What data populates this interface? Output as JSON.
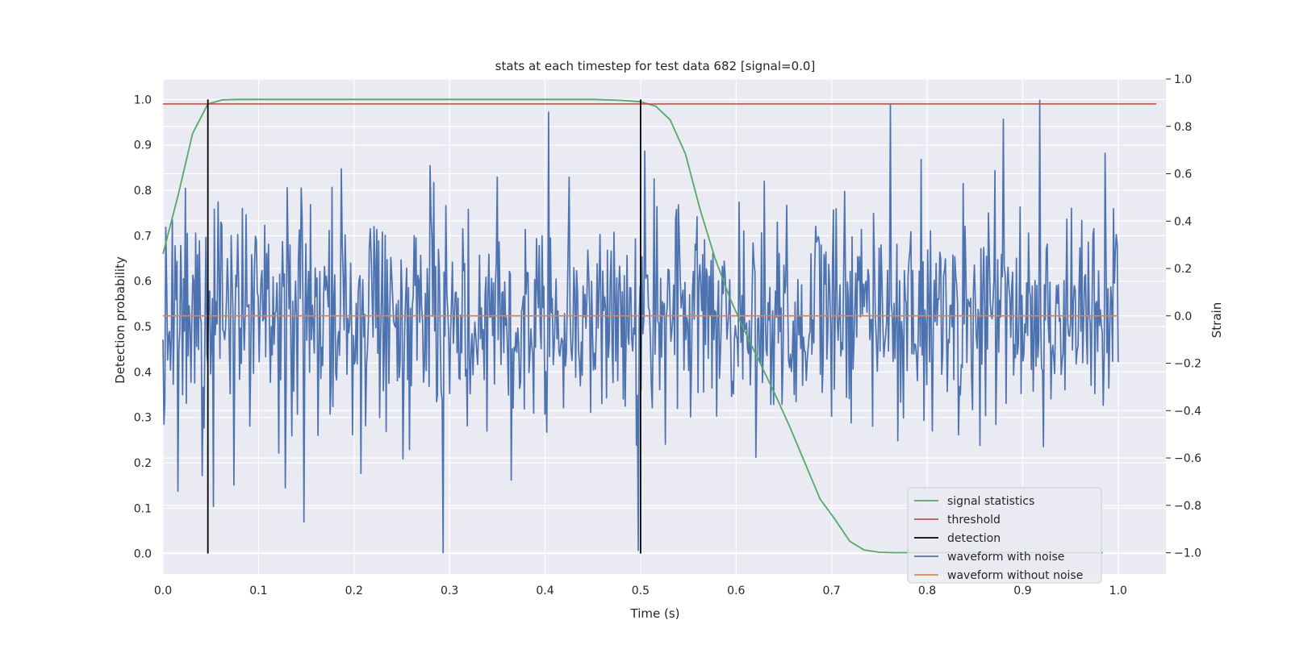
{
  "colors": {
    "background": "#eaeaf2",
    "grid": "#ffffff",
    "signal_statistics": "#55a868",
    "threshold": "#c44e52",
    "detection": "#000000",
    "waveform_with_noise": "#4c72b0",
    "waveform_without_noise": "#dd8452"
  },
  "chart_data": {
    "type": "line",
    "title": "stats at each timestep for test data 682 [signal=0.0]",
    "xlabel": "Time (s)",
    "ylabel": "Detection probability",
    "y2label": "Strain",
    "xlim": [
      0.0,
      1.05
    ],
    "ylim": [
      -0.045,
      1.045
    ],
    "y2lim": [
      -1.09,
      1.0
    ],
    "xticks": [
      "0.0",
      "0.1",
      "0.2",
      "0.3",
      "0.4",
      "0.5",
      "0.6",
      "0.7",
      "0.8",
      "0.9",
      "1.0"
    ],
    "yticks": [
      "0.0",
      "0.1",
      "0.2",
      "0.3",
      "0.4",
      "0.5",
      "0.6",
      "0.7",
      "0.8",
      "0.9",
      "1.0"
    ],
    "y2ticks": [
      "−1.0",
      "−0.8",
      "−0.6",
      "−0.4",
      "−0.2",
      "0.0",
      "0.2",
      "0.4",
      "0.6",
      "0.8",
      "1.0"
    ],
    "grid": true,
    "legend_position": "lower right",
    "series": [
      {
        "name": "signal statistics",
        "axis": "left",
        "x": [
          0.0,
          0.016,
          0.031,
          0.047,
          0.062,
          0.078,
          0.1,
          0.2,
          0.3,
          0.4,
          0.45,
          0.48,
          0.5,
          0.516,
          0.531,
          0.547,
          0.562,
          0.578,
          0.594,
          0.609,
          0.625,
          0.641,
          0.656,
          0.672,
          0.688,
          0.703,
          0.719,
          0.734,
          0.75,
          0.766,
          0.8,
          0.9,
          0.984
        ],
        "values": [
          0.66,
          0.79,
          0.925,
          0.99,
          0.999,
          1.0,
          1.0,
          1.0,
          1.0,
          1.0,
          1.0,
          0.998,
          0.995,
          0.985,
          0.955,
          0.88,
          0.76,
          0.65,
          0.56,
          0.49,
          0.42,
          0.35,
          0.28,
          0.2,
          0.12,
          0.077,
          0.027,
          0.008,
          0.003,
          0.002,
          0.002,
          0.002,
          0.002
        ]
      },
      {
        "name": "threshold",
        "axis": "left",
        "x": [
          0.0,
          1.04
        ],
        "values": [
          0.99,
          0.99
        ]
      },
      {
        "name": "detection",
        "axis": "left",
        "type": "vlines",
        "x": [
          0.047,
          0.5
        ],
        "ymin": 0.0,
        "ymax": 1.0
      },
      {
        "name": "waveform with noise",
        "axis": "right",
        "x_range": [
          0.0,
          1.0
        ],
        "samples": 1024,
        "sigma": 0.24,
        "extremes": [
          {
            "x": 0.293,
            "value": -1.0
          },
          {
            "x": 0.404,
            "value": 0.86
          },
          {
            "x": 0.148,
            "value": -0.87
          },
          {
            "x": 0.498,
            "value": -0.99
          },
          {
            "x": 0.761,
            "value": 0.89
          },
          {
            "x": 0.918,
            "value": 0.91
          },
          {
            "x": 0.88,
            "value": 0.83
          },
          {
            "x": 0.016,
            "value": -0.74
          }
        ]
      },
      {
        "name": "waveform without noise",
        "axis": "right",
        "x": [
          0.0,
          1.0
        ],
        "values": [
          0.0,
          0.0
        ]
      }
    ]
  }
}
